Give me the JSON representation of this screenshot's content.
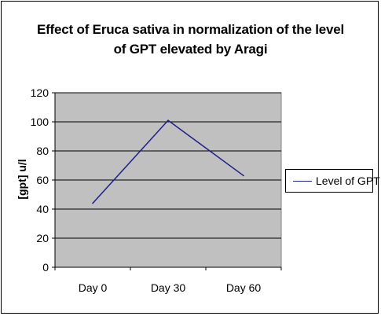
{
  "chart_data": {
    "type": "line",
    "title_line1": "Effect of Eruca sativa in normalization of the level",
    "title_line2": "of GPT elevated by Aragi",
    "ylabel": "[gpt] u/l",
    "xlabel": "",
    "categories": [
      "Day 0",
      "Day 30",
      "Day 60"
    ],
    "series": [
      {
        "name": "Level of GPT",
        "values": [
          44,
          101,
          63
        ],
        "color": "#1f1f8a"
      }
    ],
    "ylim": [
      0,
      120
    ],
    "yticks": [
      0,
      20,
      40,
      60,
      80,
      100,
      120
    ],
    "plot_background": "#c0c0c0",
    "grid": true,
    "legend_position": "right"
  }
}
